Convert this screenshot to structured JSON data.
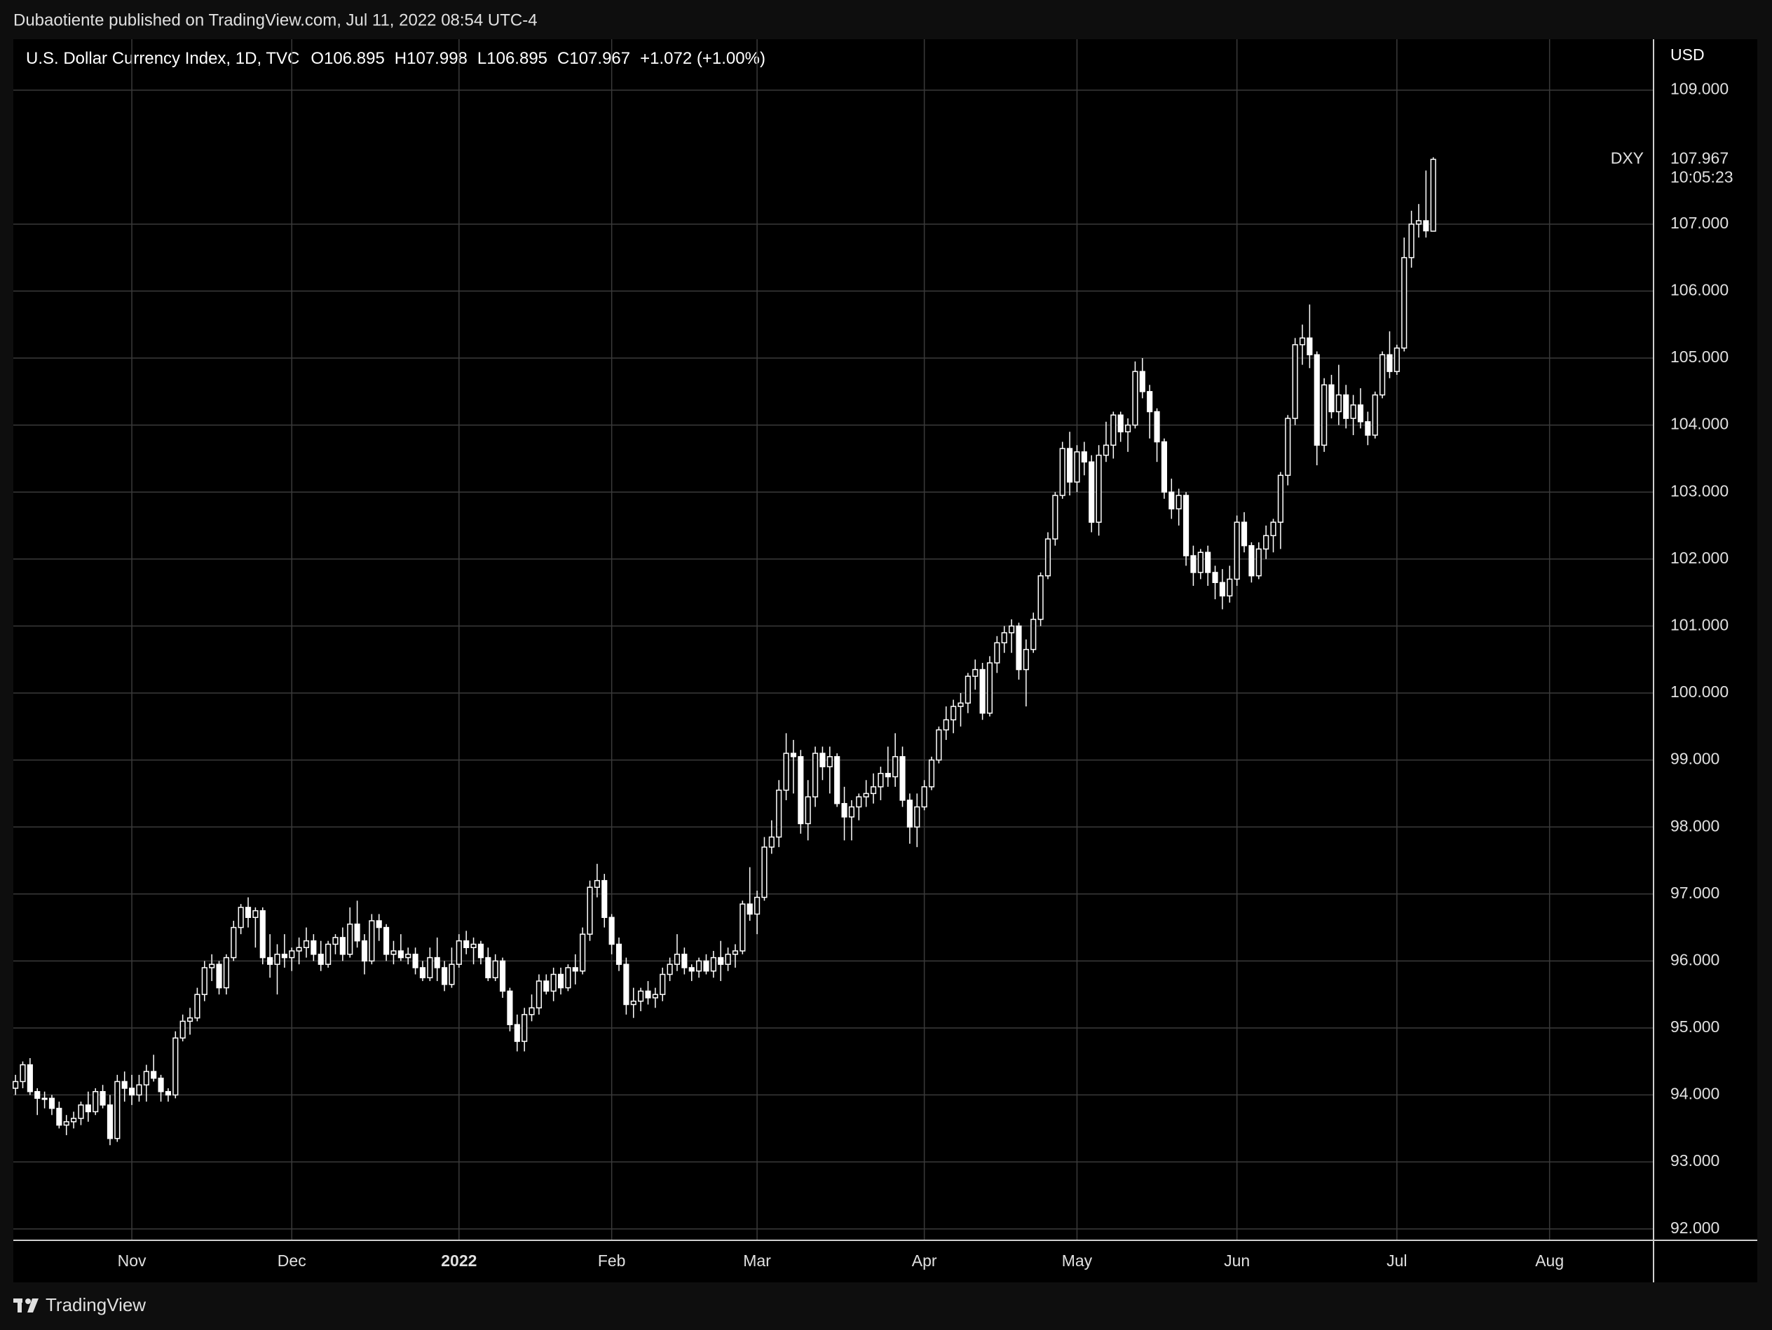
{
  "header": {
    "publisher": "Dubaotiente published on TradingView.com, Jul 11, 2022 08:54 UTC-4"
  },
  "footer_brand": "TradingView",
  "chart_data": {
    "type": "candlestick",
    "symbol_line": "U.S. Dollar Currency Index, 1D, TVC",
    "ohlc_labels": [
      "O",
      "H",
      "L",
      "C"
    ],
    "change_label": "+1.072 (+1.00%)",
    "currency": "USD",
    "symbol": "DXY",
    "countdown": "10:05:23",
    "up_color": "#000000",
    "down_color": "#ffffff",
    "wick_color": "#ffffff",
    "grid": true,
    "xlim": [
      -0.3,
      225.3
    ],
    "xticks": [
      {
        "value": 16,
        "label": "Nov"
      },
      {
        "value": 38,
        "label": "Dec"
      },
      {
        "value": 61,
        "label": "2022"
      },
      {
        "value": 82,
        "label": "Feb"
      },
      {
        "value": 102,
        "label": "Mar"
      },
      {
        "value": 125,
        "label": "Apr"
      },
      {
        "value": 146,
        "label": "May"
      },
      {
        "value": 168,
        "label": "Jun"
      },
      {
        "value": 190,
        "label": "Jul"
      },
      {
        "value": 211,
        "label": "Aug"
      }
    ],
    "ylim": [
      91.83,
      109.76
    ],
    "yticks": [
      {
        "value": 92,
        "label": "92.000"
      },
      {
        "value": 93,
        "label": "93.000"
      },
      {
        "value": 94,
        "label": "94.000"
      },
      {
        "value": 95,
        "label": "95.000"
      },
      {
        "value": 96,
        "label": "96.000"
      },
      {
        "value": 97,
        "label": "97.000"
      },
      {
        "value": 98,
        "label": "98.000"
      },
      {
        "value": 99,
        "label": "99.000"
      },
      {
        "value": 100,
        "label": "100.000"
      },
      {
        "value": 101,
        "label": "101.000"
      },
      {
        "value": 102,
        "label": "102.000"
      },
      {
        "value": 103,
        "label": "103.000"
      },
      {
        "value": 104,
        "label": "104.000"
      },
      {
        "value": 105,
        "label": "105.000"
      },
      {
        "value": 106,
        "label": "106.000"
      },
      {
        "value": 107,
        "label": "107.000"
      },
      {
        "value": 109,
        "label": "109.000"
      }
    ],
    "candles": [
      [
        94.1,
        94.3,
        94.0,
        94.2
      ],
      [
        94.2,
        94.5,
        94.1,
        94.45
      ],
      [
        94.45,
        94.55,
        94.0,
        94.05
      ],
      [
        94.05,
        94.1,
        93.7,
        93.95
      ],
      [
        93.95,
        94.05,
        93.8,
        93.95
      ],
      [
        93.95,
        94.0,
        93.7,
        93.8
      ],
      [
        93.8,
        93.9,
        93.5,
        93.55
      ],
      [
        93.55,
        93.7,
        93.4,
        93.6
      ],
      [
        93.6,
        93.75,
        93.5,
        93.65
      ],
      [
        93.65,
        93.9,
        93.55,
        93.85
      ],
      [
        93.85,
        94.05,
        93.6,
        93.75
      ],
      [
        93.75,
        94.1,
        93.7,
        94.05
      ],
      [
        94.05,
        94.15,
        93.8,
        93.85
      ],
      [
        93.85,
        94.0,
        93.25,
        93.35
      ],
      [
        93.35,
        94.3,
        93.3,
        94.2
      ],
      [
        94.2,
        94.35,
        93.9,
        94.1
      ],
      [
        94.1,
        94.3,
        93.85,
        94.0
      ],
      [
        94.0,
        94.3,
        93.9,
        94.15
      ],
      [
        94.15,
        94.45,
        93.9,
        94.35
      ],
      [
        94.35,
        94.6,
        94.2,
        94.25
      ],
      [
        94.25,
        94.3,
        93.9,
        94.05
      ],
      [
        94.05,
        94.1,
        93.9,
        94.0
      ],
      [
        94.0,
        94.95,
        93.95,
        94.85
      ],
      [
        94.85,
        95.2,
        94.8,
        95.1
      ],
      [
        95.1,
        95.3,
        94.9,
        95.15
      ],
      [
        95.15,
        95.6,
        95.1,
        95.5
      ],
      [
        95.5,
        96.0,
        95.4,
        95.9
      ],
      [
        95.9,
        96.1,
        95.7,
        95.95
      ],
      [
        95.95,
        96.0,
        95.5,
        95.6
      ],
      [
        95.6,
        96.1,
        95.5,
        96.05
      ],
      [
        96.05,
        96.6,
        96.0,
        96.5
      ],
      [
        96.5,
        96.85,
        96.4,
        96.8
      ],
      [
        96.8,
        96.95,
        96.5,
        96.65
      ],
      [
        96.65,
        96.8,
        96.2,
        96.75
      ],
      [
        96.75,
        96.8,
        95.95,
        96.05
      ],
      [
        96.05,
        96.4,
        95.75,
        95.95
      ],
      [
        95.95,
        96.25,
        95.5,
        96.1
      ],
      [
        96.1,
        96.4,
        95.9,
        96.05
      ],
      [
        96.05,
        96.2,
        95.85,
        96.15
      ],
      [
        96.15,
        96.35,
        95.95,
        96.2
      ],
      [
        96.2,
        96.5,
        96.05,
        96.3
      ],
      [
        96.3,
        96.4,
        96.0,
        96.1
      ],
      [
        96.1,
        96.3,
        95.85,
        95.95
      ],
      [
        95.95,
        96.3,
        95.9,
        96.25
      ],
      [
        96.25,
        96.4,
        96.1,
        96.35
      ],
      [
        96.35,
        96.5,
        96.0,
        96.1
      ],
      [
        96.1,
        96.8,
        96.05,
        96.55
      ],
      [
        96.55,
        96.9,
        96.2,
        96.3
      ],
      [
        96.3,
        96.4,
        95.8,
        96.0
      ],
      [
        96.0,
        96.7,
        95.95,
        96.6
      ],
      [
        96.6,
        96.7,
        96.3,
        96.5
      ],
      [
        96.5,
        96.55,
        96.0,
        96.1
      ],
      [
        96.1,
        96.3,
        95.95,
        96.15
      ],
      [
        96.15,
        96.4,
        96.0,
        96.05
      ],
      [
        96.05,
        96.2,
        95.95,
        96.1
      ],
      [
        96.1,
        96.2,
        95.8,
        95.9
      ],
      [
        95.9,
        96.0,
        95.7,
        95.75
      ],
      [
        95.75,
        96.2,
        95.7,
        96.05
      ],
      [
        96.05,
        96.35,
        95.7,
        95.9
      ],
      [
        95.9,
        96.0,
        95.55,
        95.65
      ],
      [
        95.65,
        96.2,
        95.6,
        95.95
      ],
      [
        95.95,
        96.4,
        95.9,
        96.3
      ],
      [
        96.3,
        96.45,
        96.1,
        96.2
      ],
      [
        96.2,
        96.35,
        95.95,
        96.25
      ],
      [
        96.25,
        96.3,
        95.95,
        96.05
      ],
      [
        96.05,
        96.2,
        95.7,
        95.75
      ],
      [
        95.75,
        96.1,
        95.7,
        96.0
      ],
      [
        96.0,
        96.05,
        95.45,
        95.55
      ],
      [
        95.55,
        95.6,
        94.95,
        95.05
      ],
      [
        95.05,
        95.2,
        94.65,
        94.8
      ],
      [
        94.8,
        95.3,
        94.65,
        95.2
      ],
      [
        95.2,
        95.5,
        95.1,
        95.3
      ],
      [
        95.3,
        95.8,
        95.2,
        95.7
      ],
      [
        95.7,
        95.8,
        95.5,
        95.55
      ],
      [
        95.55,
        95.9,
        95.4,
        95.8
      ],
      [
        95.8,
        95.9,
        95.5,
        95.6
      ],
      [
        95.6,
        95.95,
        95.55,
        95.9
      ],
      [
        95.9,
        96.1,
        95.65,
        95.85
      ],
      [
        95.85,
        96.5,
        95.8,
        96.4
      ],
      [
        96.4,
        97.2,
        96.3,
        97.1
      ],
      [
        97.1,
        97.45,
        96.95,
        97.2
      ],
      [
        97.2,
        97.3,
        96.5,
        96.65
      ],
      [
        96.65,
        96.7,
        96.1,
        96.25
      ],
      [
        96.25,
        96.35,
        95.85,
        95.95
      ],
      [
        95.95,
        96.05,
        95.2,
        95.35
      ],
      [
        95.35,
        95.6,
        95.15,
        95.4
      ],
      [
        95.4,
        95.6,
        95.25,
        95.55
      ],
      [
        95.55,
        95.7,
        95.35,
        95.45
      ],
      [
        95.45,
        95.6,
        95.3,
        95.5
      ],
      [
        95.5,
        95.9,
        95.4,
        95.8
      ],
      [
        95.8,
        96.05,
        95.7,
        95.95
      ],
      [
        95.95,
        96.4,
        95.85,
        96.1
      ],
      [
        96.1,
        96.2,
        95.8,
        95.9
      ],
      [
        95.9,
        95.95,
        95.7,
        95.85
      ],
      [
        95.85,
        96.05,
        95.75,
        96.0
      ],
      [
        96.0,
        96.1,
        95.8,
        95.85
      ],
      [
        95.85,
        96.15,
        95.75,
        96.05
      ],
      [
        96.05,
        96.3,
        95.7,
        95.95
      ],
      [
        95.95,
        96.2,
        95.85,
        96.1
      ],
      [
        96.1,
        96.25,
        95.9,
        96.15
      ],
      [
        96.15,
        96.9,
        96.1,
        96.85
      ],
      [
        96.85,
        97.4,
        96.6,
        96.7
      ],
      [
        96.7,
        97.05,
        96.4,
        96.95
      ],
      [
        96.95,
        97.85,
        96.9,
        97.7
      ],
      [
        97.7,
        98.1,
        97.6,
        97.85
      ],
      [
        97.85,
        98.7,
        97.7,
        98.55
      ],
      [
        98.55,
        99.4,
        98.4,
        99.1
      ],
      [
        99.1,
        99.3,
        98.5,
        99.05
      ],
      [
        99.05,
        99.15,
        97.9,
        98.05
      ],
      [
        98.05,
        98.7,
        97.8,
        98.45
      ],
      [
        98.45,
        99.2,
        98.3,
        99.1
      ],
      [
        99.1,
        99.2,
        98.7,
        98.9
      ],
      [
        98.9,
        99.2,
        98.5,
        99.05
      ],
      [
        99.05,
        99.1,
        98.3,
        98.35
      ],
      [
        98.35,
        98.6,
        97.8,
        98.15
      ],
      [
        98.15,
        98.4,
        97.8,
        98.3
      ],
      [
        98.3,
        98.5,
        98.1,
        98.45
      ],
      [
        98.45,
        98.7,
        98.3,
        98.5
      ],
      [
        98.5,
        98.8,
        98.35,
        98.6
      ],
      [
        98.6,
        98.9,
        98.4,
        98.8
      ],
      [
        98.8,
        99.2,
        98.6,
        98.75
      ],
      [
        98.75,
        99.4,
        98.6,
        99.05
      ],
      [
        99.05,
        99.2,
        98.3,
        98.4
      ],
      [
        98.4,
        98.5,
        97.75,
        98.0
      ],
      [
        98.0,
        98.5,
        97.7,
        98.3
      ],
      [
        98.3,
        98.7,
        98.25,
        98.6
      ],
      [
        98.6,
        99.05,
        98.55,
        99.0
      ],
      [
        99.0,
        99.5,
        98.95,
        99.45
      ],
      [
        99.45,
        99.8,
        99.3,
        99.6
      ],
      [
        99.6,
        99.9,
        99.4,
        99.8
      ],
      [
        99.8,
        100.0,
        99.5,
        99.85
      ],
      [
        99.85,
        100.3,
        99.7,
        100.25
      ],
      [
        100.25,
        100.5,
        100.05,
        100.35
      ],
      [
        100.35,
        100.45,
        99.6,
        99.7
      ],
      [
        99.7,
        100.55,
        99.65,
        100.45
      ],
      [
        100.45,
        100.85,
        100.3,
        100.75
      ],
      [
        100.75,
        101.0,
        100.6,
        100.9
      ],
      [
        100.9,
        101.1,
        100.6,
        101.0
      ],
      [
        101.0,
        101.05,
        100.2,
        100.35
      ],
      [
        100.35,
        100.8,
        99.8,
        100.65
      ],
      [
        100.65,
        101.2,
        100.6,
        101.1
      ],
      [
        101.1,
        101.8,
        101.0,
        101.75
      ],
      [
        101.75,
        102.4,
        101.7,
        102.3
      ],
      [
        102.3,
        103.0,
        102.2,
        102.95
      ],
      [
        102.95,
        103.75,
        102.9,
        103.65
      ],
      [
        103.65,
        103.9,
        102.95,
        103.15
      ],
      [
        103.15,
        103.7,
        103.0,
        103.6
      ],
      [
        103.6,
        103.75,
        103.25,
        103.45
      ],
      [
        103.45,
        103.55,
        102.4,
        102.55
      ],
      [
        102.55,
        103.7,
        102.35,
        103.55
      ],
      [
        103.55,
        104.05,
        103.45,
        103.7
      ],
      [
        103.7,
        104.2,
        103.5,
        104.15
      ],
      [
        104.15,
        104.2,
        103.75,
        103.9
      ],
      [
        103.9,
        104.1,
        103.6,
        104.0
      ],
      [
        104.0,
        104.95,
        103.95,
        104.8
      ],
      [
        104.8,
        105.0,
        104.4,
        104.5
      ],
      [
        104.5,
        104.6,
        103.8,
        104.2
      ],
      [
        104.2,
        104.25,
        103.45,
        103.75
      ],
      [
        103.75,
        103.8,
        102.9,
        103.0
      ],
      [
        103.0,
        103.2,
        102.6,
        102.75
      ],
      [
        102.75,
        103.05,
        102.5,
        102.95
      ],
      [
        102.95,
        103.0,
        101.9,
        102.05
      ],
      [
        102.05,
        102.2,
        101.6,
        101.8
      ],
      [
        101.8,
        102.15,
        101.7,
        102.1
      ],
      [
        102.1,
        102.2,
        101.6,
        101.8
      ],
      [
        101.8,
        101.9,
        101.4,
        101.65
      ],
      [
        101.65,
        101.85,
        101.25,
        101.45
      ],
      [
        101.45,
        101.9,
        101.35,
        101.7
      ],
      [
        101.7,
        102.65,
        101.6,
        102.55
      ],
      [
        102.55,
        102.7,
        102.1,
        102.2
      ],
      [
        102.2,
        102.25,
        101.65,
        101.75
      ],
      [
        101.75,
        102.25,
        101.7,
        102.15
      ],
      [
        102.15,
        102.5,
        102.0,
        102.35
      ],
      [
        102.35,
        102.6,
        102.1,
        102.55
      ],
      [
        102.55,
        103.3,
        102.15,
        103.25
      ],
      [
        103.25,
        104.15,
        103.1,
        104.1
      ],
      [
        104.1,
        105.3,
        104.0,
        105.2
      ],
      [
        105.2,
        105.5,
        104.9,
        105.3
      ],
      [
        105.3,
        105.8,
        104.85,
        105.05
      ],
      [
        105.05,
        105.1,
        103.4,
        103.7
      ],
      [
        103.7,
        104.7,
        103.6,
        104.6
      ],
      [
        104.6,
        104.75,
        104.1,
        104.2
      ],
      [
        104.2,
        104.9,
        104.0,
        104.45
      ],
      [
        104.45,
        104.6,
        103.95,
        104.1
      ],
      [
        104.1,
        104.45,
        103.85,
        104.3
      ],
      [
        104.3,
        104.55,
        103.95,
        104.05
      ],
      [
        104.05,
        104.2,
        103.7,
        103.85
      ],
      [
        103.85,
        104.5,
        103.8,
        104.45
      ],
      [
        104.45,
        105.1,
        104.4,
        105.05
      ],
      [
        105.05,
        105.4,
        104.7,
        104.8
      ],
      [
        104.8,
        105.2,
        104.75,
        105.15
      ],
      [
        105.15,
        106.8,
        105.1,
        106.5
      ],
      [
        106.5,
        107.2,
        106.35,
        107.0
      ],
      [
        107.0,
        107.3,
        106.8,
        107.05
      ],
      [
        107.05,
        107.8,
        106.8,
        106.9
      ],
      [
        106.895,
        107.998,
        106.895,
        107.967
      ]
    ]
  }
}
